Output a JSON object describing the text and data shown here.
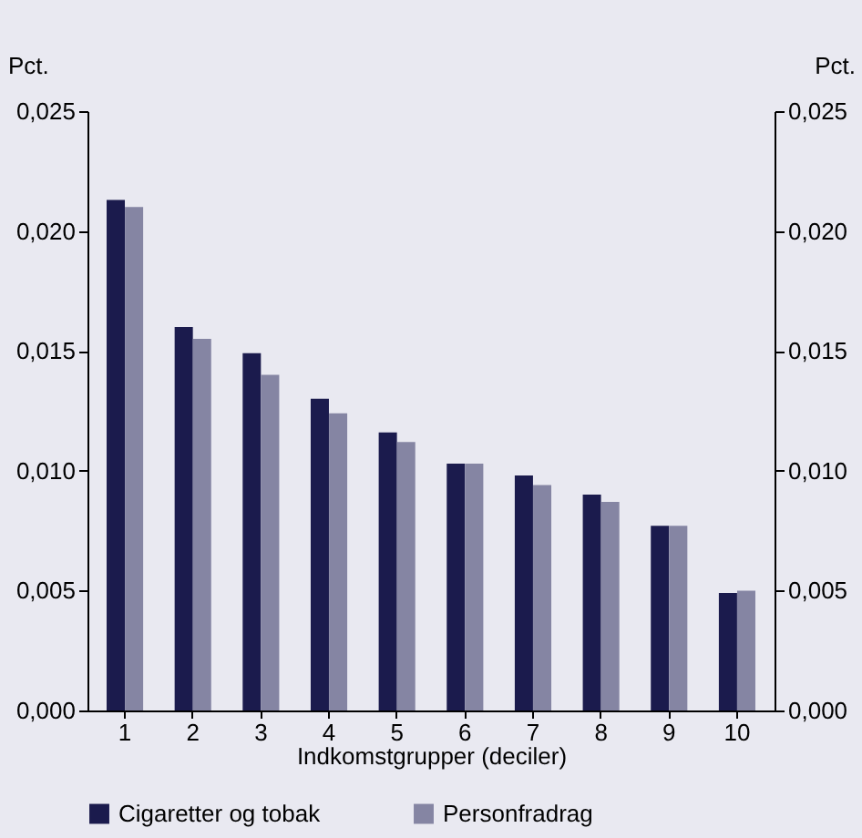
{
  "chart_data": {
    "type": "bar",
    "xlabel": "Indkomstgrupper (deciler)",
    "ylabel": "Pct.",
    "y2label": "Pct.",
    "categories": [
      "1",
      "2",
      "3",
      "4",
      "5",
      "6",
      "7",
      "8",
      "9",
      "10"
    ],
    "series": [
      {
        "name": "Cigaretter og tobak",
        "color": "#1b1b4d",
        "values": [
          0.0213,
          0.016,
          0.0149,
          0.013,
          0.0116,
          0.0103,
          0.0098,
          0.009,
          0.0077,
          0.0049
        ]
      },
      {
        "name": "Personfradrag",
        "color": "#8585a3",
        "values": [
          0.021,
          0.0155,
          0.014,
          0.0124,
          0.0112,
          0.0103,
          0.0094,
          0.0087,
          0.0077,
          0.005
        ]
      }
    ],
    "ylim": [
      0,
      0.025
    ],
    "yticks": [
      {
        "value": 0,
        "label": "0,000"
      },
      {
        "value": 0.005,
        "label": "0,005"
      },
      {
        "value": 0.01,
        "label": "0,010"
      },
      {
        "value": 0.015,
        "label": "0,015"
      },
      {
        "value": 0.02,
        "label": "0,020"
      },
      {
        "value": 0.025,
        "label": "0,025"
      }
    ],
    "y2lim": [
      0,
      0.025
    ],
    "y2ticks": [
      {
        "value": 0,
        "label": "0,000"
      },
      {
        "value": 0.005,
        "label": "0,005"
      },
      {
        "value": 0.01,
        "label": "0,010"
      },
      {
        "value": 0.015,
        "label": "0,015"
      },
      {
        "value": 0.02,
        "label": "0,020"
      },
      {
        "value": 0.025,
        "label": "0,025"
      }
    ],
    "legend": "bottom",
    "grid": false
  }
}
